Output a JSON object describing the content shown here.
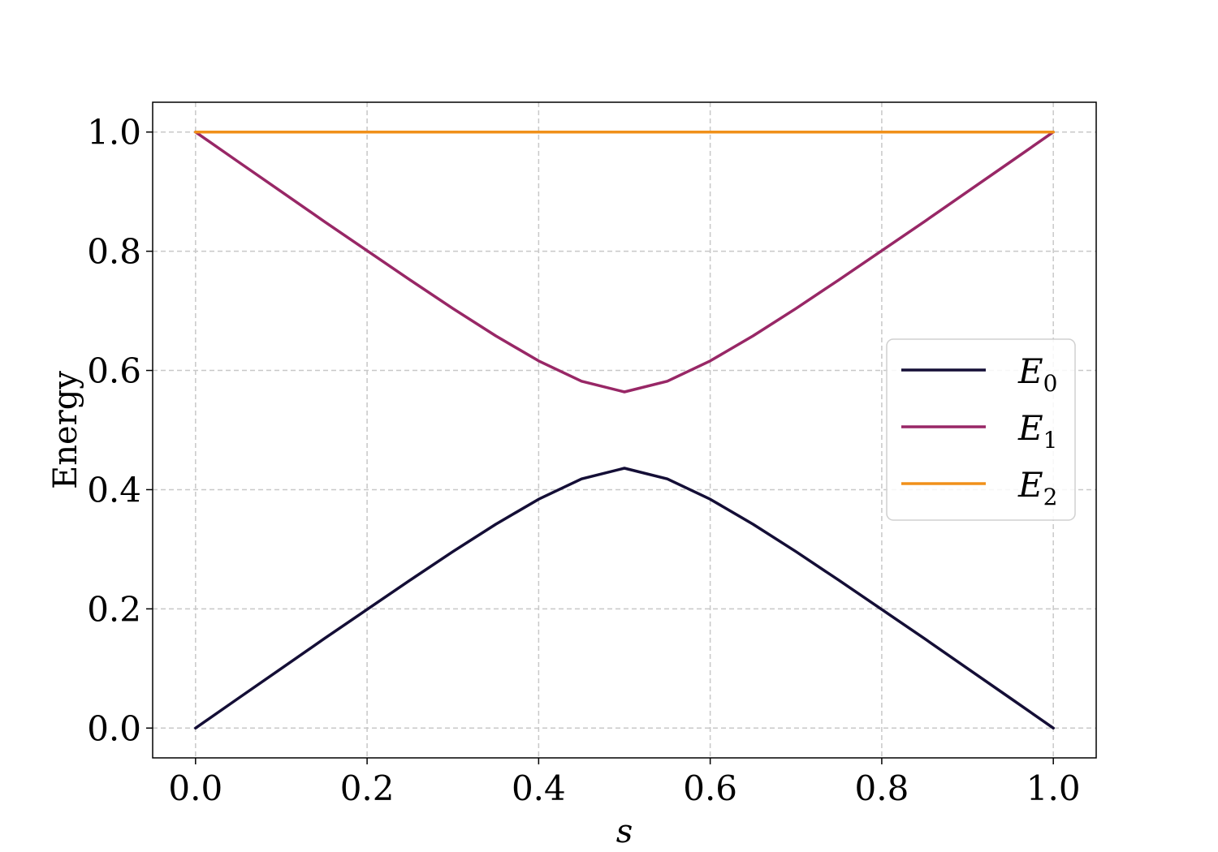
{
  "chart_data": {
    "type": "line",
    "xlabel": "s",
    "ylabel": "Energy",
    "xlim": [
      -0.05,
      1.05
    ],
    "ylim": [
      -0.05,
      1.05
    ],
    "xticks": [
      0.0,
      0.2,
      0.4,
      0.6,
      0.8,
      1.0
    ],
    "yticks": [
      0.0,
      0.2,
      0.4,
      0.6,
      0.8,
      1.0
    ],
    "xtick_labels": [
      "0.0",
      "0.2",
      "0.4",
      "0.6",
      "0.8",
      "1.0"
    ],
    "ytick_labels": [
      "0.0",
      "0.2",
      "0.4",
      "0.6",
      "0.8",
      "1.0"
    ],
    "grid": true,
    "legend_position": "center-right",
    "x": [
      0.0,
      0.05,
      0.1,
      0.15,
      0.2,
      0.25,
      0.3,
      0.35,
      0.4,
      0.45,
      0.5,
      0.55,
      0.6,
      0.65,
      0.7,
      0.75,
      0.8,
      0.85,
      0.9,
      0.95,
      1.0
    ],
    "series": [
      {
        "name": "E_0",
        "legend_main": "E",
        "legend_sub": "0",
        "color": "#140e36",
        "values": [
          0.0,
          0.05,
          0.1,
          0.15,
          0.199,
          0.248,
          0.296,
          0.342,
          0.384,
          0.418,
          0.436,
          0.418,
          0.384,
          0.342,
          0.296,
          0.248,
          0.199,
          0.15,
          0.1,
          0.05,
          0.0
        ]
      },
      {
        "name": "E_1",
        "legend_main": "E",
        "legend_sub": "1",
        "color": "#982766",
        "values": [
          1.0,
          0.95,
          0.9,
          0.85,
          0.801,
          0.752,
          0.704,
          0.658,
          0.616,
          0.582,
          0.564,
          0.582,
          0.616,
          0.658,
          0.704,
          0.752,
          0.801,
          0.85,
          0.9,
          0.95,
          1.0
        ]
      },
      {
        "name": "E_2",
        "legend_main": "E",
        "legend_sub": "2",
        "color": "#f0901a",
        "values": [
          1.0,
          1.0,
          1.0,
          1.0,
          1.0,
          1.0,
          1.0,
          1.0,
          1.0,
          1.0,
          1.0,
          1.0,
          1.0,
          1.0,
          1.0,
          1.0,
          1.0,
          1.0,
          1.0,
          1.0,
          1.0
        ]
      }
    ]
  }
}
